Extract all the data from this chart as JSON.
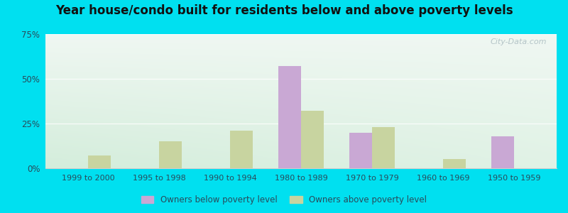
{
  "title": "Year house/condo built for residents below and above poverty levels",
  "categories": [
    "1999 to 2000",
    "1995 to 1998",
    "1990 to 1994",
    "1980 to 1989",
    "1970 to 1979",
    "1960 to 1969",
    "1950 to 1959"
  ],
  "below_poverty": [
    0,
    0,
    0,
    57,
    20,
    0,
    18
  ],
  "above_poverty": [
    7,
    15,
    21,
    32,
    23,
    5,
    0
  ],
  "below_color": "#c9a8d4",
  "above_color": "#c8d4a0",
  "ylim": [
    0,
    75
  ],
  "yticks": [
    0,
    25,
    50,
    75
  ],
  "ytick_labels": [
    "0%",
    "25%",
    "50%",
    "75%"
  ],
  "bar_width": 0.32,
  "bg_color_topleft": "#d8ede3",
  "bg_color_topright": "#f0f5f5",
  "bg_color_bottom": "#dceedd",
  "outer_bg": "#00e0f0",
  "title_fontsize": 12,
  "legend_below_label": "Owners below poverty level",
  "legend_above_label": "Owners above poverty level",
  "watermark": "City-Data.com"
}
